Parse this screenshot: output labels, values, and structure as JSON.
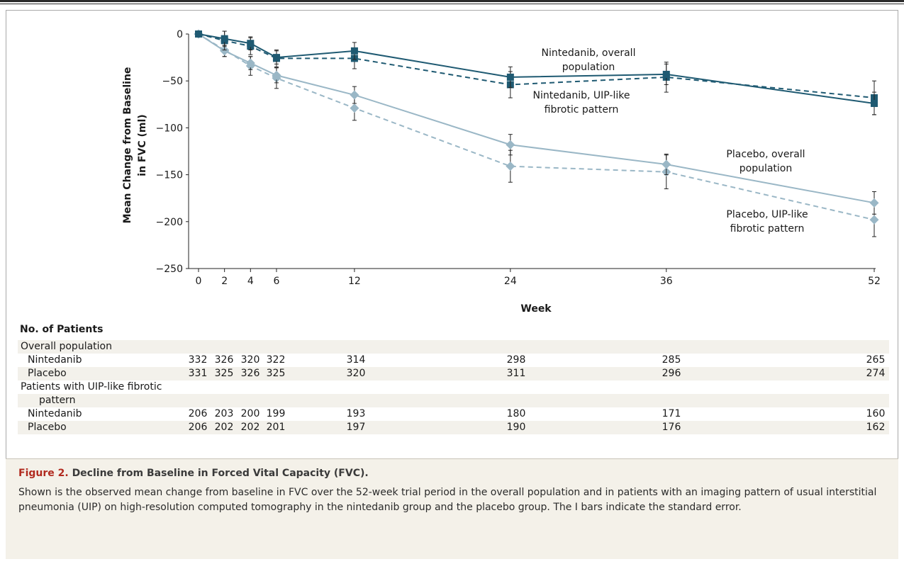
{
  "chart_data": {
    "type": "line",
    "ylabel_line1": "Mean Change from Baseline",
    "ylabel_line2": "in FVC (ml)",
    "xlabel": "Week",
    "ylim": [
      -250,
      0
    ],
    "yticks": [
      0,
      -50,
      -100,
      -150,
      -200,
      -250
    ],
    "ytick_labels": [
      "0",
      "−50",
      "−100",
      "−150",
      "−200",
      "−250"
    ],
    "xticks": [
      0,
      2,
      4,
      6,
      12,
      24,
      36,
      52
    ],
    "xlim": [
      0,
      52
    ],
    "series": [
      {
        "name": "Nintedanib, overall population",
        "color": "#1f5a72",
        "dash": false,
        "marker": "square",
        "x": [
          0,
          2,
          4,
          6,
          12,
          24,
          36,
          52
        ],
        "y": [
          0,
          -5,
          -10,
          -25,
          -18,
          -46,
          -43,
          -74
        ],
        "err": [
          0,
          8,
          7,
          7,
          9,
          11,
          11,
          12
        ]
      },
      {
        "name": "Nintedanib, UIP-like fibrotic pattern",
        "color": "#1f5a72",
        "dash": true,
        "marker": "square",
        "x": [
          0,
          2,
          4,
          6,
          12,
          24,
          36,
          52
        ],
        "y": [
          0,
          -7,
          -13,
          -26,
          -26,
          -54,
          -46,
          -68
        ],
        "err": [
          0,
          10,
          9,
          9,
          11,
          14,
          16,
          18
        ]
      },
      {
        "name": "Placebo, overall population",
        "color": "#9ab7c6",
        "dash": false,
        "marker": "diamond",
        "x": [
          0,
          2,
          4,
          6,
          12,
          24,
          36,
          52
        ],
        "y": [
          0,
          -18,
          -31,
          -44,
          -65,
          -118,
          -139,
          -180
        ],
        "err": [
          0,
          6,
          7,
          8,
          9,
          11,
          11,
          12
        ]
      },
      {
        "name": "Placebo, UIP-like fibrotic pattern",
        "color": "#9ab7c6",
        "dash": true,
        "marker": "diamond",
        "x": [
          0,
          2,
          4,
          6,
          12,
          24,
          36,
          52
        ],
        "y": [
          0,
          -17,
          -34,
          -47,
          -79,
          -141,
          -147,
          -198
        ],
        "err": [
          0,
          7,
          10,
          11,
          13,
          17,
          18,
          18
        ]
      }
    ],
    "annotations": [
      {
        "lines": [
          "Nintedanib, overall",
          "population"
        ]
      },
      {
        "lines": [
          "Nintedanib, UIP-like",
          "fibrotic pattern"
        ]
      },
      {
        "lines": [
          "Placebo, overall",
          "population"
        ]
      },
      {
        "lines": [
          "Placebo, UIP-like",
          "fibrotic pattern"
        ]
      }
    ]
  },
  "patients_table": {
    "title": "No. of Patients",
    "rows": [
      {
        "label": "Overall population",
        "indent": 0,
        "values": []
      },
      {
        "label": "Nintedanib",
        "indent": 1,
        "values": [
          "332",
          "326",
          "320",
          "322",
          "314",
          "298",
          "285",
          "265"
        ]
      },
      {
        "label": "Placebo",
        "indent": 1,
        "values": [
          "331",
          "325",
          "326",
          "325",
          "320",
          "311",
          "296",
          "274"
        ]
      },
      {
        "label": "Patients with UIP-like fibrotic",
        "indent": 0,
        "values": []
      },
      {
        "label": "pattern",
        "indent": 2,
        "values": []
      },
      {
        "label": "Nintedanib",
        "indent": 1,
        "values": [
          "206",
          "203",
          "200",
          "199",
          "193",
          "180",
          "171",
          "160"
        ]
      },
      {
        "label": "Placebo",
        "indent": 1,
        "values": [
          "206",
          "202",
          "202",
          "201",
          "197",
          "190",
          "176",
          "162"
        ]
      }
    ]
  },
  "caption": {
    "figure_label": "Figure 2.",
    "title": "Decline from Baseline in Forced Vital Capacity (FVC).",
    "body": "Shown is the observed mean change from baseline in FVC over the 52-week trial period in the overall population and in patients with an imaging pattern of usual interstitial pneumonia (UIP) on high-resolution computed tomography in the nintedanib group and the placebo group. The I bars indicate the standard error."
  }
}
